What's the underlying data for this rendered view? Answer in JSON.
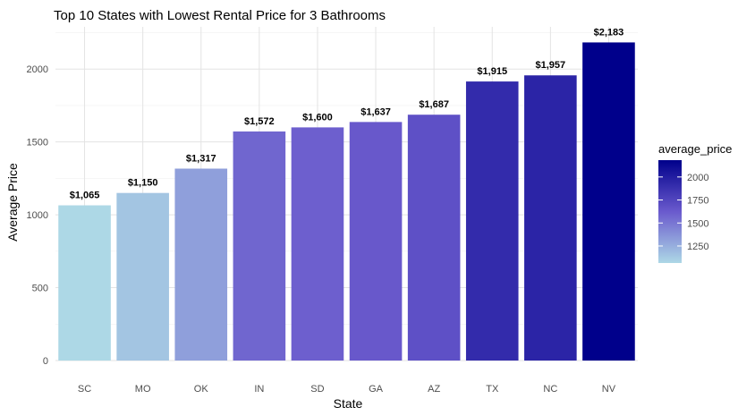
{
  "chart_data": {
    "type": "bar",
    "title": "Top 10 States with Lowest Rental Price for 3 Bathrooms",
    "xlabel": "State",
    "ylabel": "Average Price",
    "categories": [
      "SC",
      "MO",
      "OK",
      "IN",
      "SD",
      "GA",
      "AZ",
      "TX",
      "NC",
      "NV"
    ],
    "values": [
      1065,
      1150,
      1317,
      1572,
      1600,
      1637,
      1687,
      1915,
      1957,
      2183
    ],
    "value_labels": [
      "$1,065",
      "$1,150",
      "$1,317",
      "$1,572",
      "$1,600",
      "$1,637",
      "$1,687",
      "$1,915",
      "$1,957",
      "$2,183"
    ],
    "ylim": [
      0,
      2290
    ],
    "yticks": [
      0,
      500,
      1000,
      1500,
      2000
    ],
    "ytick_labels": [
      "0",
      "500",
      "1000",
      "1500",
      "2000"
    ],
    "grid": true,
    "legend": {
      "title": "average_price",
      "placement": "right",
      "ticks": [
        1250,
        1500,
        1750,
        2000
      ],
      "tick_labels": [
        "1250",
        "1500",
        "1750",
        "2000"
      ],
      "range": [
        1065,
        2183
      ],
      "color_low": "#add8e6",
      "color_mid": "#6a5acd",
      "color_high": "#00008b"
    }
  }
}
